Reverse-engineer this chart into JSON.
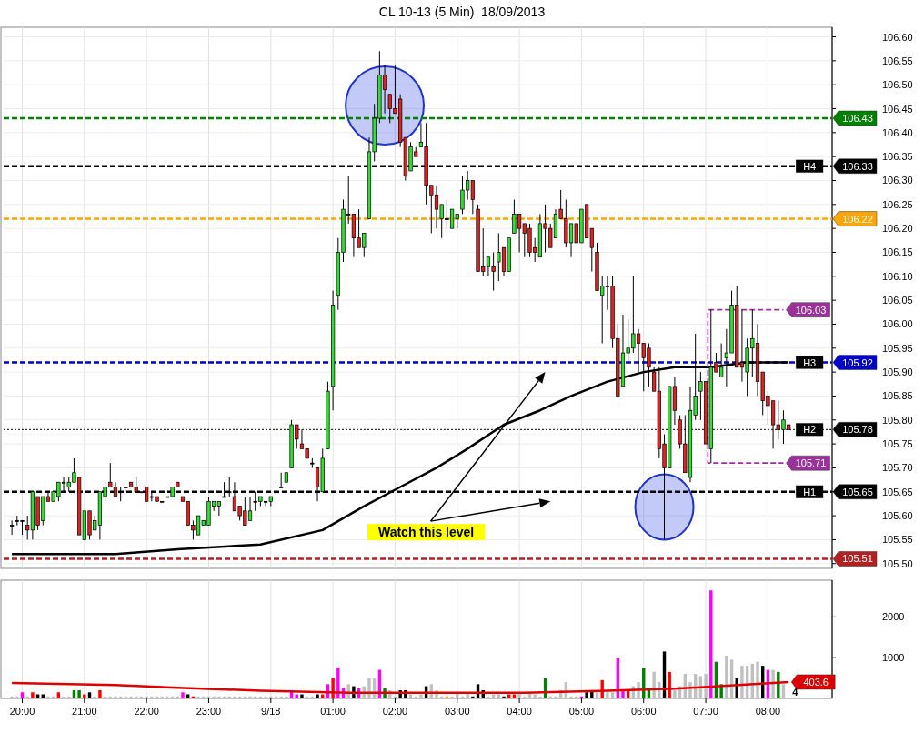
{
  "chart_data": [
    {
      "type": "candlestick",
      "title": "CL 10-13 (5 Min)  18/09/2013",
      "x": [
        "2013-09-17T19:50",
        "2013-09-17T19:55",
        "2013-09-17T20:00",
        "2013-09-17T20:05",
        "2013-09-17T20:10",
        "2013-09-17T20:15",
        "2013-09-17T20:20",
        "2013-09-17T20:25",
        "2013-09-17T20:30",
        "2013-09-17T20:35",
        "2013-09-17T20:40",
        "2013-09-17T20:45",
        "2013-09-17T20:50",
        "2013-09-17T20:55",
        "2013-09-17T21:00",
        "2013-09-17T21:05",
        "2013-09-17T21:10",
        "2013-09-17T21:15",
        "2013-09-17T21:20",
        "2013-09-17T21:25",
        "2013-09-17T21:30",
        "2013-09-17T21:35",
        "2013-09-17T21:40",
        "2013-09-17T21:45",
        "2013-09-17T21:50",
        "2013-09-17T21:55",
        "2013-09-17T22:00",
        "2013-09-17T22:05",
        "2013-09-17T22:10",
        "2013-09-17T22:15",
        "2013-09-17T22:20",
        "2013-09-17T22:25",
        "2013-09-17T22:30",
        "2013-09-17T22:35",
        "2013-09-17T22:40",
        "2013-09-17T22:45",
        "2013-09-17T22:50",
        "2013-09-17T22:55",
        "2013-09-17T23:00",
        "2013-09-17T23:05",
        "2013-09-17T23:10",
        "2013-09-17T23:15",
        "2013-09-17T23:20",
        "2013-09-17T23:25",
        "2013-09-17T23:30",
        "2013-09-17T23:35",
        "2013-09-17T23:40",
        "2013-09-17T23:45",
        "2013-09-17T23:50",
        "2013-09-17T23:55",
        "2013-09-18T00:00",
        "2013-09-18T00:05",
        "2013-09-18T00:10",
        "2013-09-18T00:15",
        "2013-09-18T00:20",
        "2013-09-18T00:25",
        "2013-09-18T00:30",
        "2013-09-18T00:35",
        "2013-09-18T00:40",
        "2013-09-18T00:45",
        "2013-09-18T00:50",
        "2013-09-18T00:55",
        "2013-09-18T01:00",
        "2013-09-18T01:05",
        "2013-09-18T01:10",
        "2013-09-18T01:15",
        "2013-09-18T01:20",
        "2013-09-18T01:25",
        "2013-09-18T01:30",
        "2013-09-18T01:35",
        "2013-09-18T01:40",
        "2013-09-18T01:45",
        "2013-09-18T01:50",
        "2013-09-18T01:55",
        "2013-09-18T02:00",
        "2013-09-18T02:05",
        "2013-09-18T02:10",
        "2013-09-18T02:15",
        "2013-09-18T02:20",
        "2013-09-18T02:25",
        "2013-09-18T02:30",
        "2013-09-18T02:35",
        "2013-09-18T02:40",
        "2013-09-18T02:45",
        "2013-09-18T02:50",
        "2013-09-18T02:55",
        "2013-09-18T03:00",
        "2013-09-18T03:05",
        "2013-09-18T03:10",
        "2013-09-18T03:15",
        "2013-09-18T03:20",
        "2013-09-18T03:25",
        "2013-09-18T03:30",
        "2013-09-18T03:35",
        "2013-09-18T03:40",
        "2013-09-18T03:45",
        "2013-09-18T03:50",
        "2013-09-18T03:55",
        "2013-09-18T04:00",
        "2013-09-18T04:05",
        "2013-09-18T04:10",
        "2013-09-18T04:15",
        "2013-09-18T04:20",
        "2013-09-18T04:25",
        "2013-09-18T04:30",
        "2013-09-18T04:35",
        "2013-09-18T04:40",
        "2013-09-18T04:45",
        "2013-09-18T04:50",
        "2013-09-18T04:55",
        "2013-09-18T05:00",
        "2013-09-18T05:05",
        "2013-09-18T05:10",
        "2013-09-18T05:15",
        "2013-09-18T05:20",
        "2013-09-18T05:25",
        "2013-09-18T05:30",
        "2013-09-18T05:35",
        "2013-09-18T05:40",
        "2013-09-18T05:45",
        "2013-09-18T05:50",
        "2013-09-18T05:55",
        "2013-09-18T06:00",
        "2013-09-18T06:05",
        "2013-09-18T06:10",
        "2013-09-18T06:15",
        "2013-09-18T06:20",
        "2013-09-18T06:25",
        "2013-09-18T06:30",
        "2013-09-18T06:35",
        "2013-09-18T06:40",
        "2013-09-18T06:45",
        "2013-09-18T06:50",
        "2013-09-18T06:55",
        "2013-09-18T07:00",
        "2013-09-18T07:05",
        "2013-09-18T07:10",
        "2013-09-18T07:15",
        "2013-09-18T07:20",
        "2013-09-18T07:25",
        "2013-09-18T07:30",
        "2013-09-18T07:35",
        "2013-09-18T07:40",
        "2013-09-18T07:45",
        "2013-09-18T07:50",
        "2013-09-18T07:55",
        "2013-09-18T08:00",
        "2013-09-18T08:05",
        "2013-09-18T08:10",
        "2013-09-18T08:15",
        "2013-09-18T08:20"
      ],
      "ohlc": [
        [
          105.58,
          105.59,
          105.56,
          105.58
        ],
        [
          105.59,
          105.6,
          105.58,
          105.59
        ],
        [
          105.59,
          105.59,
          105.56,
          105.59
        ],
        [
          105.58,
          105.6,
          105.55,
          105.57
        ],
        [
          105.57,
          105.65,
          105.55,
          105.65
        ],
        [
          105.64,
          105.64,
          105.57,
          105.58
        ],
        [
          105.59,
          105.64,
          105.58,
          105.64
        ],
        [
          105.64,
          105.65,
          105.63,
          105.63
        ],
        [
          105.63,
          105.65,
          105.63,
          105.65
        ],
        [
          105.64,
          105.67,
          105.63,
          105.67
        ],
        [
          105.67,
          105.68,
          105.65,
          105.67
        ],
        [
          105.66,
          105.68,
          105.65,
          105.67
        ],
        [
          105.67,
          105.72,
          105.67,
          105.69
        ],
        [
          105.68,
          105.68,
          105.56,
          105.56
        ],
        [
          105.55,
          105.61,
          105.55,
          105.61
        ],
        [
          105.61,
          105.61,
          105.55,
          105.56
        ],
        [
          105.57,
          105.6,
          105.57,
          105.59
        ],
        [
          105.58,
          105.65,
          105.55,
          105.65
        ],
        [
          105.64,
          105.67,
          105.63,
          105.66
        ],
        [
          105.67,
          105.71,
          105.66,
          105.66
        ],
        [
          105.66,
          105.67,
          105.64,
          105.64
        ],
        [
          105.65,
          105.66,
          105.63,
          105.65
        ],
        [
          105.66,
          105.66,
          105.65,
          105.66
        ],
        [
          105.67,
          105.67,
          105.66,
          105.66
        ],
        [
          105.66,
          105.68,
          105.65,
          105.65
        ],
        [
          105.65,
          105.65,
          105.65,
          105.65
        ],
        [
          105.66,
          105.66,
          105.63,
          105.63
        ],
        [
          105.64,
          105.65,
          105.63,
          105.64
        ],
        [
          105.64,
          105.64,
          105.63,
          105.63
        ],
        [
          105.63,
          105.63,
          105.63,
          105.63
        ],
        [
          105.64,
          105.64,
          105.64,
          105.64
        ],
        [
          105.64,
          105.66,
          105.64,
          105.66
        ],
        [
          105.67,
          105.67,
          105.66,
          105.66
        ],
        [
          105.64,
          105.64,
          105.63,
          105.63
        ],
        [
          105.63,
          105.63,
          105.58,
          105.58
        ],
        [
          105.58,
          105.59,
          105.55,
          105.57
        ],
        [
          105.56,
          105.6,
          105.56,
          105.6
        ],
        [
          105.58,
          105.59,
          105.58,
          105.59
        ],
        [
          105.58,
          105.64,
          105.58,
          105.63
        ],
        [
          105.62,
          105.63,
          105.61,
          105.63
        ],
        [
          105.62,
          105.63,
          105.6,
          105.63
        ],
        [
          105.64,
          105.67,
          105.64,
          105.64
        ],
        [
          105.65,
          105.68,
          105.64,
          105.65
        ],
        [
          105.64,
          105.67,
          105.61,
          105.61
        ],
        [
          105.62,
          105.62,
          105.59,
          105.6
        ],
        [
          105.61,
          105.64,
          105.58,
          105.58
        ],
        [
          105.59,
          105.64,
          105.59,
          105.61
        ],
        [
          105.63,
          105.65,
          105.61,
          105.63
        ],
        [
          105.63,
          105.64,
          105.62,
          105.64
        ],
        [
          105.63,
          105.63,
          105.62,
          105.63
        ],
        [
          105.63,
          105.64,
          105.62,
          105.64
        ],
        [
          105.65,
          105.67,
          105.63,
          105.65
        ],
        [
          105.66,
          105.69,
          105.66,
          105.66
        ],
        [
          105.67,
          105.69,
          105.67,
          105.69
        ],
        [
          105.7,
          105.8,
          105.7,
          105.79
        ],
        [
          105.79,
          105.79,
          105.74,
          105.76
        ],
        [
          105.75,
          105.78,
          105.74,
          105.74
        ],
        [
          105.74,
          105.74,
          105.72,
          105.72
        ],
        [
          105.71,
          105.72,
          105.7,
          105.71
        ],
        [
          105.7,
          105.7,
          105.63,
          105.66
        ],
        [
          105.65,
          105.74,
          105.65,
          105.72
        ],
        [
          105.74,
          105.88,
          105.74,
          105.86
        ],
        [
          105.87,
          106.07,
          105.82,
          106.04
        ],
        [
          106.06,
          106.18,
          106.03,
          106.15
        ],
        [
          106.15,
          106.26,
          106.13,
          106.24
        ],
        [
          106.23,
          106.31,
          106.21,
          106.23
        ],
        [
          106.23,
          106.23,
          106.14,
          106.18
        ],
        [
          106.18,
          106.24,
          106.16,
          106.16
        ],
        [
          106.16,
          106.19,
          106.14,
          106.19
        ],
        [
          106.22,
          106.39,
          106.22,
          106.36
        ],
        [
          106.36,
          106.46,
          106.34,
          106.43
        ],
        [
          106.43,
          106.57,
          106.42,
          106.52
        ],
        [
          106.52,
          106.54,
          106.44,
          106.49
        ],
        [
          106.48,
          106.48,
          106.42,
          106.45
        ],
        [
          106.45,
          106.54,
          106.44,
          106.44
        ],
        [
          106.47,
          106.48,
          106.37,
          106.38
        ],
        [
          106.39,
          106.39,
          106.3,
          106.31
        ],
        [
          106.32,
          106.38,
          106.32,
          106.37
        ],
        [
          106.36,
          106.37,
          106.35,
          106.35
        ],
        [
          106.37,
          106.42,
          106.37,
          106.38
        ],
        [
          106.37,
          106.42,
          106.25,
          106.29
        ],
        [
          106.29,
          106.29,
          106.19,
          106.27
        ],
        [
          106.27,
          106.29,
          106.2,
          106.24
        ],
        [
          106.22,
          106.25,
          106.18,
          106.25
        ],
        [
          106.22,
          106.26,
          106.2,
          106.22
        ],
        [
          106.2,
          106.24,
          106.2,
          106.24
        ],
        [
          106.22,
          106.23,
          106.2,
          106.23
        ],
        [
          106.24,
          106.31,
          106.23,
          106.28
        ],
        [
          106.28,
          106.32,
          106.26,
          106.3
        ],
        [
          106.3,
          106.3,
          106.23,
          106.26
        ],
        [
          106.24,
          106.25,
          106.11,
          106.11
        ],
        [
          106.12,
          106.2,
          106.1,
          106.11
        ],
        [
          106.12,
          106.14,
          106.1,
          106.14
        ],
        [
          106.12,
          106.15,
          106.07,
          106.11
        ],
        [
          106.13,
          106.19,
          106.09,
          106.15
        ],
        [
          106.16,
          106.16,
          106.1,
          106.11
        ],
        [
          106.11,
          106.18,
          106.11,
          106.18
        ],
        [
          106.19,
          106.26,
          106.19,
          106.23
        ],
        [
          106.23,
          106.23,
          106.15,
          106.2
        ],
        [
          106.21,
          106.21,
          106.14,
          106.19
        ],
        [
          106.2,
          106.21,
          106.14,
          106.15
        ],
        [
          106.16,
          106.18,
          106.13,
          106.15
        ],
        [
          106.14,
          106.23,
          106.14,
          106.21
        ],
        [
          106.21,
          106.25,
          106.15,
          106.2
        ],
        [
          106.2,
          106.21,
          106.16,
          106.16
        ],
        [
          106.18,
          106.24,
          106.18,
          106.23
        ],
        [
          106.24,
          106.28,
          106.22,
          106.22
        ],
        [
          106.22,
          106.26,
          106.16,
          106.17
        ],
        [
          106.17,
          106.21,
          106.14,
          106.21
        ],
        [
          106.21,
          106.21,
          106.17,
          106.17
        ],
        [
          106.17,
          106.24,
          106.17,
          106.24
        ],
        [
          106.25,
          106.25,
          106.18,
          106.18
        ],
        [
          106.2,
          106.2,
          106.11,
          106.16
        ],
        [
          106.15,
          106.17,
          106.07,
          106.07
        ],
        [
          106.06,
          106.1,
          105.96,
          106.08
        ],
        [
          106.08,
          106.1,
          106.03,
          106.08
        ],
        [
          106.08,
          106.1,
          105.95,
          105.97
        ],
        [
          105.97,
          106.0,
          105.85,
          105.85
        ],
        [
          105.87,
          106.02,
          105.87,
          105.94
        ],
        [
          105.94,
          106.01,
          105.92,
          105.95
        ],
        [
          105.95,
          106.1,
          105.94,
          105.98
        ],
        [
          105.98,
          105.99,
          105.9,
          105.96
        ],
        [
          105.96,
          105.96,
          105.86,
          105.93
        ],
        [
          105.95,
          105.96,
          105.87,
          105.91
        ],
        [
          105.9,
          105.91,
          105.86,
          105.86
        ],
        [
          105.86,
          105.91,
          105.72,
          105.74
        ],
        [
          105.75,
          105.77,
          105.55,
          105.7
        ],
        [
          105.7,
          105.87,
          105.7,
          105.87
        ],
        [
          105.87,
          105.89,
          105.79,
          105.82
        ],
        [
          105.8,
          105.81,
          105.74,
          105.75
        ],
        [
          105.75,
          105.81,
          105.69,
          105.69
        ],
        [
          105.68,
          105.87,
          105.67,
          105.82
        ],
        [
          105.81,
          105.98,
          105.8,
          105.85
        ],
        [
          105.86,
          105.9,
          105.8,
          105.88
        ],
        [
          105.88,
          105.88,
          105.75,
          105.75
        ],
        [
          105.74,
          106.03,
          105.71,
          105.91
        ],
        [
          105.92,
          105.94,
          105.9,
          105.9
        ],
        [
          105.89,
          105.96,
          105.89,
          105.91
        ],
        [
          105.93,
          105.99,
          105.87,
          105.94
        ],
        [
          105.94,
          106.07,
          105.94,
          106.04
        ],
        [
          106.04,
          106.08,
          105.91,
          105.91
        ],
        [
          105.92,
          106.03,
          105.88,
          105.91
        ],
        [
          105.9,
          105.97,
          105.85,
          105.95
        ],
        [
          105.95,
          106.03,
          105.89,
          105.97
        ],
        [
          105.96,
          106.0,
          105.85,
          105.88
        ],
        [
          105.9,
          105.9,
          105.81,
          105.84
        ],
        [
          105.85,
          105.86,
          105.79,
          105.83
        ],
        [
          105.84,
          105.84,
          105.74,
          105.79
        ],
        [
          105.79,
          105.84,
          105.76,
          105.78
        ],
        [
          105.78,
          105.82,
          105.75,
          105.8
        ],
        [
          105.79,
          105.79,
          105.78,
          105.78
        ]
      ],
      "xlim": [
        "2013-09-17T19:42",
        "2013-09-18T09:02"
      ],
      "xticks": [
        {
          "value": "2013-09-17T20:00",
          "label": null
        },
        {
          "value": "2013-09-17T21:00",
          "label": null
        },
        {
          "value": "2013-09-17T22:00",
          "label": null
        },
        {
          "value": "2013-09-17T23:00",
          "label": null
        },
        {
          "value": "2013-09-18T00:00",
          "label": null
        },
        {
          "value": "2013-09-18T01:00",
          "label": null
        },
        {
          "value": "2013-09-18T02:00",
          "label": null
        },
        {
          "value": "2013-09-18T03:00",
          "label": null
        },
        {
          "value": "2013-09-18T04:00",
          "label": null
        },
        {
          "value": "2013-09-18T05:00",
          "label": null
        },
        {
          "value": "2013-09-18T06:00",
          "label": null
        },
        {
          "value": "2013-09-18T07:00",
          "label": null
        },
        {
          "value": "2013-09-18T08:00",
          "label": null
        }
      ],
      "ylim": [
        105.49,
        106.62
      ],
      "yticks": [
        {
          "value": 105.5,
          "label": "105.50"
        },
        105.55,
        {
          "value": 105.6,
          "label": "105.60"
        },
        105.65,
        {
          "value": 105.7,
          "label": "105.70"
        },
        105.75,
        {
          "value": 105.8,
          "label": "105.80"
        },
        105.85,
        {
          "value": 105.9,
          "label": "105.90"
        },
        105.95,
        {
          "value": 106,
          "label": "106.00"
        },
        106.05,
        {
          "value": 106.1,
          "label": "106.10"
        },
        106.15,
        {
          "value": 106.2,
          "label": "106.20"
        },
        106.25,
        {
          "value": 106.3,
          "label": "106.30"
        },
        106.35,
        {
          "value": 106.4,
          "label": "106.40"
        },
        106.45,
        {
          "value": 106.5,
          "label": "106.50"
        },
        106.55,
        {
          "value": 106.6,
          "label": "106.60"
        }
      ],
      "grid": true,
      "tick_labels": "y",
      "ref_lines": [
        {
          "axis": "y",
          "value": 106.43,
          "label": "106.43",
          "color": "#008000",
          "line_style": "dashed"
        },
        {
          "axis": "y",
          "value": 106.33,
          "label": "106.33",
          "color": "#000000",
          "line_style": "dashed"
        },
        {
          "axis": "y",
          "value": 106.22,
          "label": "106.22",
          "color": "#ffa500",
          "line_style": "dashed"
        },
        {
          "axis": "y",
          "value": 105.92,
          "label": "105.92",
          "color": "#0000cc",
          "line_style": "dashed"
        },
        {
          "axis": "y",
          "value": 105.78,
          "label": "105.78",
          "color": "#000000",
          "line_style": "dotted"
        },
        {
          "axis": "y",
          "value": 105.65,
          "label": "105.65",
          "color": "#000000",
          "line_style": "dashed"
        },
        {
          "axis": "y",
          "value": 105.51,
          "label": "105.51",
          "color": "#b22222",
          "line_style": "dashed"
        }
      ],
      "series": [
        {
          "type": "line",
          "color": "#000000",
          "x": [
            "2013-09-17T19:50",
            "2013-09-17T20:30",
            "2013-09-17T21:30",
            "2013-09-17T22:30",
            "2013-09-17T23:50",
            "2013-09-18T00:50",
            "2013-09-18T01:30",
            "2013-09-18T02:05",
            "2013-09-18T02:40",
            "2013-09-18T03:10",
            "2013-09-18T03:45",
            "2013-09-18T04:20",
            "2013-09-18T04:50",
            "2013-09-18T05:25",
            "2013-09-18T06:00",
            "2013-09-18T06:30",
            "2013-09-18T07:05",
            "2013-09-18T07:40",
            "2013-09-18T08:20"
          ],
          "values": [
            105.52,
            105.52,
            105.52,
            105.53,
            105.54,
            105.57,
            105.62,
            105.66,
            105.7,
            105.74,
            105.79,
            105.82,
            105.85,
            105.88,
            105.9,
            105.91,
            105.91,
            105.92,
            105.92
          ]
        },
        {
          "type": "line",
          "color": "#993399",
          "line_style": "dashed",
          "x": [
            "2013-09-18T07:02",
            "2013-09-18T08:15"
          ],
          "values": [
            106.03,
            106.03
          ],
          "value_labels": [
            null,
            "106.03"
          ]
        },
        {
          "type": "line",
          "color": "#993399",
          "line_style": "dashed",
          "x": [
            "2013-09-18T07:02",
            "2013-09-18T07:02",
            "2013-09-18T08:15"
          ],
          "values": [
            106.03,
            105.71,
            105.71
          ],
          "value_labels": [
            null,
            null,
            "105.71"
          ]
        }
      ],
      "annotations": [
        "Watch this level",
        {
          "text": "H4",
          "x": "2013-09-18T08:20",
          "y": 106.33
        },
        {
          "text": "H3",
          "x": "2013-09-18T08:20",
          "y": 105.92
        },
        {
          "text": "H2",
          "x": "2013-09-18T08:20",
          "y": 105.78
        },
        {
          "text": "H1",
          "x": "2013-09-18T08:20",
          "y": 105.65
        }
      ]
    },
    {
      "type": "bar",
      "x": [
        "2013-09-17T19:50",
        "2013-09-17T19:55",
        "2013-09-17T20:00",
        "2013-09-17T20:05",
        "2013-09-17T20:10",
        "2013-09-17T20:15",
        "2013-09-17T20:20",
        "2013-09-17T20:25",
        "2013-09-17T20:30",
        "2013-09-17T20:35",
        "2013-09-17T20:40",
        "2013-09-17T20:45",
        "2013-09-17T20:50",
        "2013-09-17T20:55",
        "2013-09-17T21:00",
        "2013-09-17T21:05",
        "2013-09-17T21:10",
        "2013-09-17T21:15",
        "2013-09-17T21:20",
        "2013-09-17T21:25",
        "2013-09-17T21:30",
        "2013-09-17T21:35",
        "2013-09-17T21:40",
        "2013-09-17T21:45",
        "2013-09-17T21:50",
        "2013-09-17T21:55",
        "2013-09-17T22:00",
        "2013-09-17T22:05",
        "2013-09-17T22:10",
        "2013-09-17T22:15",
        "2013-09-17T22:20",
        "2013-09-17T22:25",
        "2013-09-17T22:30",
        "2013-09-17T22:35",
        "2013-09-17T22:40",
        "2013-09-17T22:45",
        "2013-09-17T22:50",
        "2013-09-17T22:55",
        "2013-09-17T23:00",
        "2013-09-17T23:05",
        "2013-09-17T23:10",
        "2013-09-17T23:15",
        "2013-09-17T23:20",
        "2013-09-17T23:25",
        "2013-09-17T23:30",
        "2013-09-17T23:35",
        "2013-09-17T23:40",
        "2013-09-17T23:45",
        "2013-09-17T23:50",
        "2013-09-17T23:55",
        "2013-09-18T00:00",
        "2013-09-18T00:05",
        "2013-09-18T00:10",
        "2013-09-18T00:15",
        "2013-09-18T00:20",
        "2013-09-18T00:25",
        "2013-09-18T00:30",
        "2013-09-18T00:35",
        "2013-09-18T00:40",
        "2013-09-18T00:45",
        "2013-09-18T00:50",
        "2013-09-18T00:55",
        "2013-09-18T01:00",
        "2013-09-18T01:05",
        "2013-09-18T01:10",
        "2013-09-18T01:15",
        "2013-09-18T01:20",
        "2013-09-18T01:25",
        "2013-09-18T01:30",
        "2013-09-18T01:35",
        "2013-09-18T01:40",
        "2013-09-18T01:45",
        "2013-09-18T01:50",
        "2013-09-18T01:55",
        "2013-09-18T02:00",
        "2013-09-18T02:05",
        "2013-09-18T02:10",
        "2013-09-18T02:15",
        "2013-09-18T02:20",
        "2013-09-18T02:25",
        "2013-09-18T02:30",
        "2013-09-18T02:35",
        "2013-09-18T02:40",
        "2013-09-18T02:45",
        "2013-09-18T02:50",
        "2013-09-18T02:55",
        "2013-09-18T03:00",
        "2013-09-18T03:05",
        "2013-09-18T03:10",
        "2013-09-18T03:15",
        "2013-09-18T03:20",
        "2013-09-18T03:25",
        "2013-09-18T03:30",
        "2013-09-18T03:35",
        "2013-09-18T03:40",
        "2013-09-18T03:45",
        "2013-09-18T03:50",
        "2013-09-18T03:55",
        "2013-09-18T04:00",
        "2013-09-18T04:05",
        "2013-09-18T04:10",
        "2013-09-18T04:15",
        "2013-09-18T04:20",
        "2013-09-18T04:25",
        "2013-09-18T04:30",
        "2013-09-18T04:35",
        "2013-09-18T04:40",
        "2013-09-18T04:45",
        "2013-09-18T04:50",
        "2013-09-18T04:55",
        "2013-09-18T05:00",
        "2013-09-18T05:05",
        "2013-09-18T05:10",
        "2013-09-18T05:15",
        "2013-09-18T05:20",
        "2013-09-18T05:25",
        "2013-09-18T05:30",
        "2013-09-18T05:35",
        "2013-09-18T05:40",
        "2013-09-18T05:45",
        "2013-09-18T05:50",
        "2013-09-18T05:55",
        "2013-09-18T06:00",
        "2013-09-18T06:05",
        "2013-09-18T06:10",
        "2013-09-18T06:15",
        "2013-09-18T06:20",
        "2013-09-18T06:25",
        "2013-09-18T06:30",
        "2013-09-18T06:35",
        "2013-09-18T06:40",
        "2013-09-18T06:45",
        "2013-09-18T06:50",
        "2013-09-18T06:55",
        "2013-09-18T07:00",
        "2013-09-18T07:05",
        "2013-09-18T07:10",
        "2013-09-18T07:15",
        "2013-09-18T07:20",
        "2013-09-18T07:25",
        "2013-09-18T07:30",
        "2013-09-18T07:35",
        "2013-09-18T07:40",
        "2013-09-18T07:45",
        "2013-09-18T07:50",
        "2013-09-18T07:55",
        "2013-09-18T08:00",
        "2013-09-18T08:05",
        "2013-09-18T08:10",
        "2013-09-18T08:15",
        "2013-09-18T08:20"
      ],
      "xlim": [
        "2013-09-17T19:42",
        "2013-09-18T09:02"
      ],
      "xticks": [
        {
          "value": "2013-09-17T20:00",
          "label": "20:00"
        },
        {
          "value": "2013-09-17T21:00",
          "label": "21:00"
        },
        {
          "value": "2013-09-17T22:00",
          "label": "22:00"
        },
        {
          "value": "2013-09-17T23:00",
          "label": "23:00"
        },
        {
          "value": "2013-09-18T00:00",
          "label": "9/18"
        },
        {
          "value": "2013-09-18T01:00",
          "label": "01:00"
        },
        {
          "value": "2013-09-18T02:00",
          "label": "02:00"
        },
        {
          "value": "2013-09-18T03:00",
          "label": "03:00"
        },
        {
          "value": "2013-09-18T04:00",
          "label": "04:00"
        },
        {
          "value": "2013-09-18T05:00",
          "label": "05:00"
        },
        {
          "value": "2013-09-18T06:00",
          "label": "06:00"
        },
        {
          "value": "2013-09-18T07:00",
          "label": "07:00"
        },
        {
          "value": "2013-09-18T08:00",
          "label": "08:00"
        }
      ],
      "ylim": [
        0,
        2900
      ],
      "yticks": [
        1000,
        2000
      ],
      "grid": "x",
      "series": [
        {
          "type": "bar",
          "values": [
            50,
            50,
            150,
            50,
            150,
            100,
            100,
            50,
            50,
            150,
            50,
            50,
            200,
            200,
            100,
            150,
            50,
            200,
            50,
            50,
            50,
            50,
            50,
            50,
            50,
            50,
            50,
            50,
            50,
            50,
            50,
            50,
            50,
            150,
            100,
            50,
            50,
            50,
            50,
            50,
            50,
            50,
            50,
            50,
            50,
            50,
            50,
            50,
            50,
            50,
            50,
            50,
            50,
            50,
            200,
            100,
            100,
            50,
            50,
            100,
            100,
            350,
            500,
            750,
            250,
            350,
            300,
            250,
            300,
            500,
            500,
            700,
            250,
            200,
            50,
            200,
            200,
            100,
            50,
            100,
            300,
            350,
            200,
            50,
            50,
            50,
            150,
            50,
            150,
            50,
            350,
            200,
            50,
            100,
            100,
            50,
            100,
            100,
            150,
            50,
            150,
            100,
            50,
            500,
            50,
            50,
            200,
            400,
            50,
            50,
            50,
            150,
            200,
            150,
            450,
            150,
            150,
            1000,
            200,
            200,
            300,
            400,
            750,
            250,
            650,
            400,
            1150,
            650,
            200,
            300,
            600,
            400,
            600,
            550,
            600,
            2650,
            900,
            350,
            1050,
            950,
            500,
            800,
            800,
            850,
            900,
            800,
            700,
            700,
            650,
            350,
            4
          ],
          "colors": [
            "#c0c0c0",
            "#c0c0c0",
            "#ff00ff",
            "#c0c0c0",
            "#ff0000",
            "#000000",
            "#000000",
            "#c0c0c0",
            "#c0c0c0",
            "#ff0000",
            "#c0c0c0",
            "#c0c0c0",
            "#008000",
            "#008000",
            "#ff0000",
            "#000000",
            "#c0c0c0",
            "#ff0000",
            "#c0c0c0",
            "#c0c0c0",
            "#c0c0c0",
            "#c0c0c0",
            "#c0c0c0",
            "#c0c0c0",
            "#c0c0c0",
            "#c0c0c0",
            "#c0c0c0",
            "#c0c0c0",
            "#c0c0c0",
            "#c0c0c0",
            "#c0c0c0",
            "#c0c0c0",
            "#c0c0c0",
            "#ff00ff",
            "#000000",
            "#ff0000",
            "#c0c0c0",
            "#c0c0c0",
            "#c0c0c0",
            "#c0c0c0",
            "#c0c0c0",
            "#c0c0c0",
            "#c0c0c0",
            "#c0c0c0",
            "#c0c0c0",
            "#c0c0c0",
            "#c0c0c0",
            "#c0c0c0",
            "#c0c0c0",
            "#c0c0c0",
            "#c0c0c0",
            "#c0c0c0",
            "#c0c0c0",
            "#c0c0c0",
            "#ff00ff",
            "#ff00ff",
            "#000000",
            "#c0c0c0",
            "#c0c0c0",
            "#000000",
            "#ff0000",
            "#ff00ff",
            "#ff0000",
            "#ff00ff",
            "#ff00ff",
            "#c0c0c0",
            "#000000",
            "#ff00ff",
            "#c0c0c0",
            "#c0c0c0",
            "#c0c0c0",
            "#ff00ff",
            "#008000",
            "#c0c0c0",
            "#c0c0c0",
            "#000000",
            "#000000",
            "#c0c0c0",
            "#c0c0c0",
            "#c0c0c0",
            "#000000",
            "#c0c0c0",
            "#c0c0c0",
            "#c0c0c0",
            "#ffa500",
            "#c0c0c0",
            "#c0c0c0",
            "#c0c0c0",
            "#c0c0c0",
            "#000000",
            "#000000",
            "#000000",
            "#c0c0c0",
            "#c0c0c0",
            "#c0c0c0",
            "#000000",
            "#ff0000",
            "#ff0000",
            "#c0c0c0",
            "#c0c0c0",
            "#c0c0c0",
            "#c0c0c0",
            "#c0c0c0",
            "#008000",
            "#c0c0c0",
            "#c0c0c0",
            "#c0c0c0",
            "#c0c0c0",
            "#c0c0c0",
            "#c0c0c0",
            "#ff00ff",
            "#000000",
            "#000000",
            "#c0c0c0",
            "#ff0000",
            "#c0c0c0",
            "#c0c0c0",
            "#ff00ff",
            "#ff00ff",
            "#ff0000",
            "#c0c0c0",
            "#c0c0c0",
            "#008000",
            "#008000",
            "#c0c0c0",
            "#c0c0c0",
            "#000000",
            "#ff0000",
            "#c0c0c0",
            "#c0c0c0",
            "#c0c0c0",
            "#c0c0c0",
            "#c0c0c0",
            "#c0c0c0",
            "#c0c0c0",
            "#ff00ff",
            "#008000",
            "#008000",
            "#c0c0c0",
            "#c0c0c0",
            "#000000",
            "#c0c0c0",
            "#c0c0c0",
            "#c0c0c0",
            "#c0c0c0",
            "#000000",
            "#ff00ff",
            "#c0c0c0",
            "#008000",
            "#c0c0c0",
            "#000000"
          ],
          "value_labels": [
            null,
            null,
            null,
            null,
            null,
            null,
            null,
            null,
            null,
            null,
            null,
            null,
            null,
            null,
            null,
            null,
            null,
            null,
            null,
            null,
            null,
            null,
            null,
            null,
            null,
            null,
            null,
            null,
            null,
            null,
            null,
            null,
            null,
            null,
            null,
            null,
            null,
            null,
            null,
            null,
            null,
            null,
            null,
            null,
            null,
            null,
            null,
            null,
            null,
            null,
            null,
            null,
            null,
            null,
            null,
            null,
            null,
            null,
            null,
            null,
            null,
            null,
            null,
            null,
            null,
            null,
            null,
            null,
            null,
            null,
            null,
            null,
            null,
            null,
            null,
            null,
            null,
            null,
            null,
            null,
            null,
            null,
            null,
            null,
            null,
            null,
            null,
            null,
            null,
            null,
            null,
            null,
            null,
            null,
            null,
            null,
            null,
            null,
            null,
            null,
            null,
            null,
            null,
            null,
            null,
            null,
            null,
            null,
            null,
            null,
            null,
            null,
            null,
            null,
            null,
            null,
            null,
            null,
            null,
            null,
            null,
            null,
            null,
            null,
            null,
            null,
            null,
            null,
            null,
            null,
            null,
            null,
            null,
            null,
            null,
            null,
            null,
            null,
            null,
            null,
            null,
            null,
            null,
            null,
            null,
            null,
            null,
            null,
            null,
            null,
            "4"
          ]
        },
        {
          "type": "line",
          "color": "#dd0000",
          "x": [
            "2013-09-17T19:50",
            "2013-09-17T21:30",
            "2013-09-17T22:30",
            "2013-09-17T23:50",
            "2013-09-18T01:15",
            "2013-09-18T02:40",
            "2013-09-18T04:05",
            "2013-09-18T05:25",
            "2013-09-18T06:30",
            "2013-09-18T07:20",
            "2013-09-18T08:20"
          ],
          "values": [
            380,
            330,
            260,
            190,
            140,
            140,
            140,
            190,
            240,
            310,
            403.6
          ],
          "value_labels": [
            null,
            null,
            null,
            null,
            null,
            null,
            null,
            null,
            null,
            null,
            "403.6"
          ]
        }
      ]
    }
  ]
}
